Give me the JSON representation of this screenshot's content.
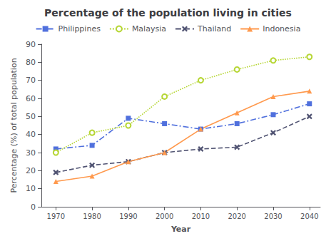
{
  "chart_data": {
    "type": "line",
    "title": "Percentage of the population living in cities",
    "x_label": "Year",
    "y_label": "Percentage (%) of total population",
    "x": [
      1970,
      1980,
      1990,
      2000,
      2010,
      2020,
      2030,
      2040
    ],
    "series": [
      {
        "name": "Philippines",
        "values": [
          32,
          34,
          49,
          46,
          43,
          46,
          51,
          57
        ],
        "marker": "square",
        "line_style": "dashdot"
      },
      {
        "name": "Malaysia",
        "values": [
          30,
          41,
          45,
          61,
          70,
          76,
          81,
          83
        ],
        "marker": "circle",
        "line_style": "dotted"
      },
      {
        "name": "Thailand",
        "values": [
          19,
          23,
          25,
          30,
          32,
          33,
          41,
          50
        ],
        "marker": "x",
        "line_style": "dashed"
      },
      {
        "name": "Indonesia",
        "values": [
          14,
          17,
          25,
          30,
          43,
          52,
          61,
          64
        ],
        "marker": "triangle",
        "line_style": "solid"
      }
    ],
    "xlim": [
      1966,
      2043
    ],
    "xticks": [
      1970,
      1980,
      1990,
      2000,
      2010,
      2020,
      2030,
      2040
    ],
    "ylim": [
      0,
      90
    ],
    "yticks": [
      0,
      10,
      20,
      30,
      40,
      50,
      60,
      70,
      80,
      90
    ],
    "grid": false,
    "legend": "top"
  }
}
